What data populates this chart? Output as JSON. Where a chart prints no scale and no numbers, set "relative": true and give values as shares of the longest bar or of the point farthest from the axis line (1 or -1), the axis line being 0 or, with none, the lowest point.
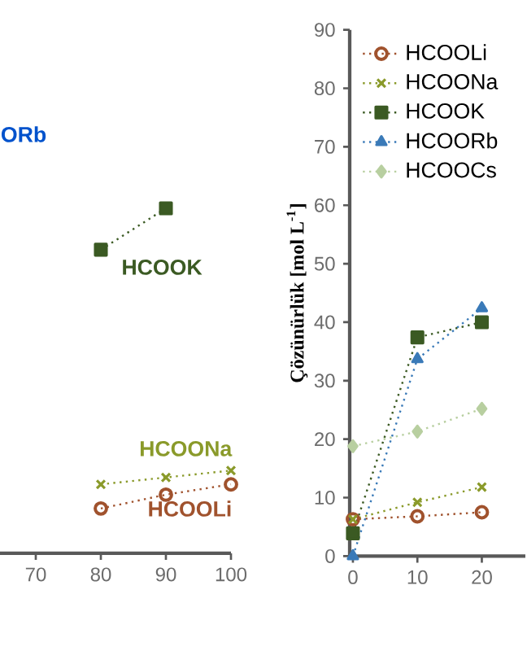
{
  "chart_data": [
    {
      "type": "line",
      "relative": true,
      "x": [
        80,
        90,
        100
      ],
      "xlim": [
        64.5,
        100
      ],
      "xticks": [
        70,
        80,
        90,
        100
      ],
      "tick_labels": "x",
      "line_style": "dotted",
      "legend": false,
      "annotations": [
        "ORb"
      ],
      "series": [
        {
          "name": "HCOOLi",
          "color": "#a0522d",
          "marker": "circle",
          "values": [
            0.13,
            0.17,
            0.2
          ]
        },
        {
          "name": "HCOONa",
          "color": "#8a9a2a",
          "marker": "cross",
          "values": [
            0.2,
            0.22,
            0.24
          ]
        },
        {
          "name": "HCOOK",
          "color": "#3b5a23",
          "marker": "square",
          "values": [
            0.88,
            1,
            null
          ]
        }
      ]
    },
    {
      "type": "line",
      "x": [
        0,
        10,
        20
      ],
      "xlim": [
        -0.5,
        26.75
      ],
      "ylim": [
        0,
        90
      ],
      "xticks": [
        0,
        10,
        20
      ],
      "yticks": [
        0,
        10,
        20,
        30,
        40,
        50,
        60,
        70,
        80,
        90
      ],
      "ylabel": "Çözünürlük  [mol L$^{-1}$]",
      "line_style": "dotted",
      "legend": "top left",
      "series": [
        {
          "name": "HCOOLi",
          "color": "#a0522d",
          "marker": "circle",
          "values": [
            6.3,
            6.8,
            7.5
          ]
        },
        {
          "name": "HCOONa",
          "color": "#8a9a2a",
          "marker": "cross",
          "values": [
            6.3,
            9.2,
            11.8
          ]
        },
        {
          "name": "HCOOK",
          "color": "#3b5a23",
          "marker": "square",
          "values": [
            3.9,
            37.4,
            40.0
          ]
        },
        {
          "name": "HCOORb",
          "color": "#3a7ab8",
          "marker": "triangle",
          "values": [
            0,
            33.7,
            42.4
          ]
        },
        {
          "name": "HCOOCs",
          "color": "#b8cfa0",
          "marker": "diamond",
          "values": [
            18.8,
            21.3,
            25.2
          ]
        }
      ]
    }
  ]
}
